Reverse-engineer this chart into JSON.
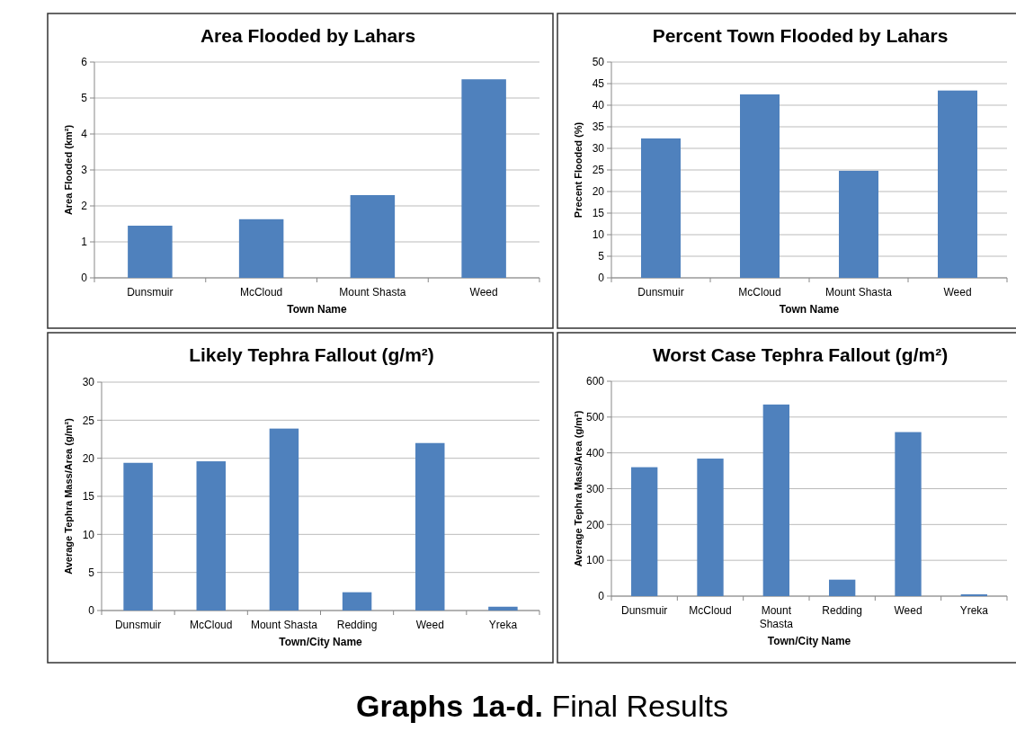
{
  "chart_data": [
    {
      "type": "bar",
      "title": "Area Flooded by Lahars",
      "xlabel": "Town Name",
      "ylabel": "Area Flooded (km²)",
      "categories": [
        "Dunsmuir",
        "McCloud",
        "Mount Shasta",
        "Weed"
      ],
      "values": [
        1.45,
        1.63,
        2.3,
        5.52
      ],
      "color": "#4f81bd",
      "ylim": [
        0,
        6
      ],
      "yticks": [
        0,
        1,
        2,
        3,
        4,
        5,
        6
      ],
      "grid": "y"
    },
    {
      "type": "bar",
      "title": "Percent Town Flooded by Lahars",
      "xlabel": "Town Name",
      "ylabel": "Precent Flooded (%)",
      "categories": [
        "Dunsmuir",
        "McCloud",
        "Mount Shasta",
        "Weed"
      ],
      "values": [
        32.3,
        42.5,
        24.8,
        43.4
      ],
      "color": "#4f81bd",
      "ylim": [
        0,
        50
      ],
      "yticks": [
        0,
        5,
        10,
        15,
        20,
        25,
        30,
        35,
        40,
        45,
        50
      ],
      "grid": "y"
    },
    {
      "type": "bar",
      "title": "Likely Tephra Fallout (g/m²)",
      "xlabel": "Town/City Name",
      "ylabel": "Average Tephra Mass/Area (g/m²)",
      "categories": [
        "Dunsmuir",
        "McCloud",
        "Mount Shasta",
        "Redding",
        "Weed",
        "Yreka"
      ],
      "values": [
        19.4,
        19.6,
        23.9,
        2.4,
        22.0,
        0.5
      ],
      "color": "#4f81bd",
      "ylim": [
        0,
        30
      ],
      "yticks": [
        0,
        5,
        10,
        15,
        20,
        25,
        30
      ],
      "grid": "y"
    },
    {
      "type": "bar",
      "title": "Worst Case Tephra Fallout (g/m²)",
      "xlabel": "Town/City Name",
      "ylabel": "Average Tephra Mass/Area (g/m²)",
      "categories": [
        "Dunsmuir",
        "McCloud",
        "Mount Shasta",
        "Redding",
        "Weed",
        "Yreka"
      ],
      "values": [
        360,
        384,
        535,
        46,
        458,
        5
      ],
      "color": "#4f81bd",
      "ylim": [
        0,
        600
      ],
      "yticks": [
        0,
        100,
        200,
        300,
        400,
        500,
        600
      ],
      "grid": "y",
      "annotations": [
        "Graphs 1a-d. Final Results"
      ]
    }
  ]
}
